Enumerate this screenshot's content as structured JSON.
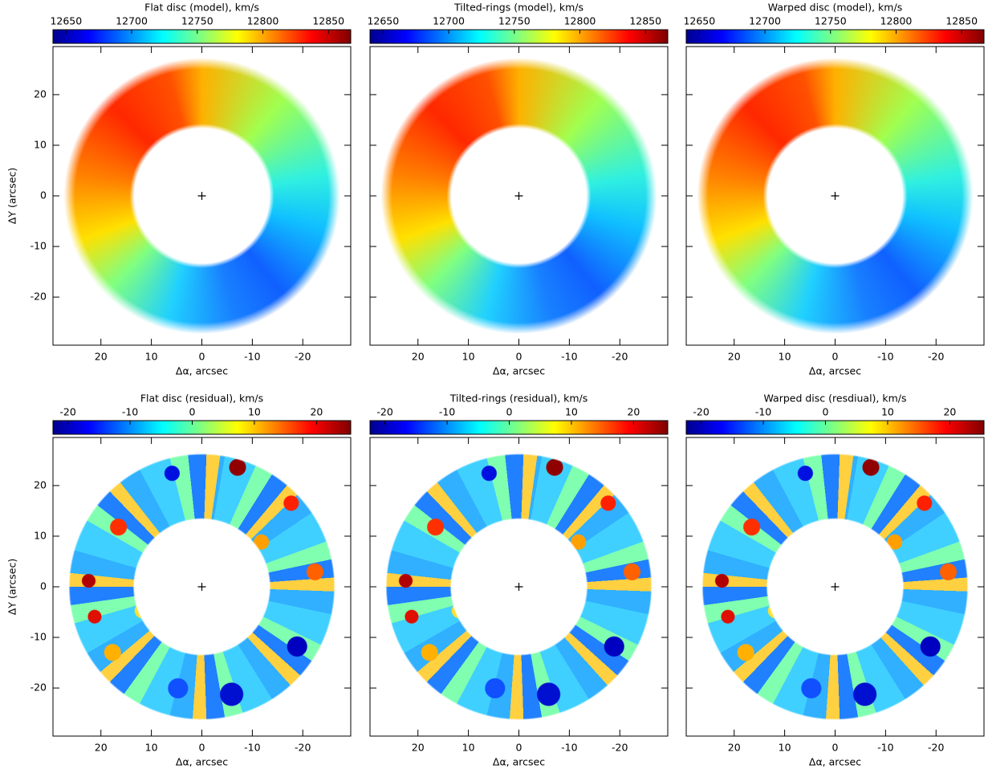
{
  "chart_data": [
    {
      "type": "heatmap",
      "title": "Flat disc (model), km/s",
      "colormap": "jet",
      "colorbar": {
        "clim": [
          12640,
          12867
        ],
        "ticks": [
          12650,
          12700,
          12750,
          12800,
          12850
        ]
      },
      "xlabel": "Δα, arcsec",
      "ylabel": "ΔY (arcsec)",
      "xlim": [
        29.5,
        -29.5
      ],
      "ylim": [
        -29.5,
        29.5
      ],
      "xticks": [
        20,
        10,
        0,
        -10,
        -20
      ],
      "yticks": [
        -20,
        -10,
        0,
        10,
        20
      ]
    },
    {
      "type": "heatmap",
      "title": "Tilted-rings (model), km/s",
      "colormap": "jet",
      "colorbar": {
        "clim": [
          12640,
          12867
        ],
        "ticks": [
          12650,
          12700,
          12750,
          12800,
          12850
        ]
      },
      "xlabel": "Δα, arcsec",
      "xlim": [
        29.5,
        -29.5
      ],
      "ylim": [
        -29.5,
        29.5
      ],
      "xticks": [
        20,
        10,
        0,
        -10,
        -20
      ],
      "yticks": [
        -20,
        -10,
        0,
        10,
        20
      ]
    },
    {
      "type": "heatmap",
      "title": "Warped disc (model), km/s",
      "colormap": "jet",
      "colorbar": {
        "clim": [
          12640,
          12867
        ],
        "ticks": [
          12650,
          12700,
          12750,
          12800,
          12850
        ]
      },
      "xlabel": "Δα, arcsec",
      "xlim": [
        29.5,
        -29.5
      ],
      "ylim": [
        -29.5,
        29.5
      ],
      "xticks": [
        20,
        10,
        0,
        -10,
        -20
      ],
      "yticks": [
        -20,
        -10,
        0,
        10,
        20
      ]
    },
    {
      "type": "heatmap",
      "title": "Flat disc (residual), km/s",
      "colormap": "jet",
      "colorbar": {
        "clim": [
          -22.4,
          25.5
        ],
        "ticks": [
          -20,
          -10,
          0,
          10,
          20
        ]
      },
      "xlabel": "Δα, arcsec",
      "ylabel": "ΔY (arcsec)",
      "xlim": [
        29.5,
        -29.5
      ],
      "ylim": [
        -29.5,
        29.5
      ],
      "xticks": [
        20,
        10,
        0,
        -10,
        -20
      ],
      "yticks": [
        -20,
        -10,
        0,
        10,
        20
      ]
    },
    {
      "type": "heatmap",
      "title": "Tilted-rings (residual), km/s",
      "colormap": "jet",
      "colorbar": {
        "clim": [
          -22.4,
          25.5
        ],
        "ticks": [
          -20,
          -10,
          0,
          10,
          20
        ]
      },
      "xlabel": "Δα, arcsec",
      "xlim": [
        29.5,
        -29.5
      ],
      "ylim": [
        -29.5,
        29.5
      ],
      "xticks": [
        20,
        10,
        0,
        -10,
        -20
      ],
      "yticks": [
        -20,
        -10,
        0,
        10,
        20
      ]
    },
    {
      "type": "heatmap",
      "title": "Warped disc (resdiual), km/s",
      "colormap": "jet",
      "colorbar": {
        "clim": [
          -22.4,
          25.5
        ],
        "ticks": [
          -20,
          -10,
          0,
          10,
          20
        ]
      },
      "xlabel": "Δα, arcsec",
      "xlim": [
        29.5,
        -29.5
      ],
      "ylim": [
        -29.5,
        29.5
      ],
      "xticks": [
        20,
        10,
        0,
        -10,
        -20
      ],
      "yticks": [
        -20,
        -10,
        0,
        10,
        20
      ]
    }
  ]
}
